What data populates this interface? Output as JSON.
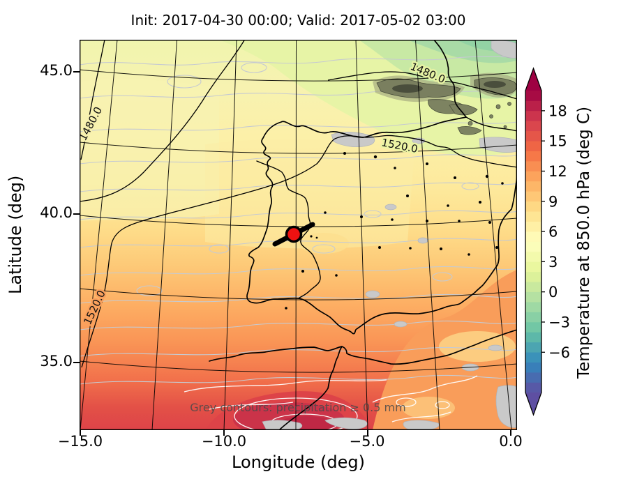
{
  "title": "Init: 2017-04-30 00:00; Valid: 2017-05-02 03:00",
  "init_time": "2017-04-30 00:00",
  "valid_time": "2017-05-02 03:00",
  "axes": {
    "xlabel": "Longitude (deg)",
    "ylabel": "Latitude (deg)",
    "x_ticks": [
      "−15.0",
      "−10.0",
      "−5.0",
      "0.0"
    ],
    "y_ticks": [
      "45.0",
      "40.0",
      "35.0"
    ]
  },
  "colorbar": {
    "label": "Temperature at 850.0 hPa (deg C)",
    "colormap": "Spectral_r",
    "vmin": -10,
    "vmax": 20,
    "step": 1,
    "extend": "both",
    "ticks": [
      {
        "label": "18",
        "v": 18
      },
      {
        "label": "15",
        "v": 15
      },
      {
        "label": "12",
        "v": 12
      },
      {
        "label": "9",
        "v": 9
      },
      {
        "label": "6",
        "v": 6
      },
      {
        "label": "3",
        "v": 3
      },
      {
        "label": "0",
        "v": 0
      },
      {
        "label": "−3",
        "v": -3
      },
      {
        "label": "−6",
        "v": -6
      }
    ],
    "anchors": [
      "#9e0142",
      "#d53e4f",
      "#f46d43",
      "#fdae61",
      "#fee08b",
      "#ffffbf",
      "#e6f598",
      "#abdda4",
      "#66c2a5",
      "#3288bd",
      "#5e4fa2"
    ]
  },
  "map": {
    "annotation": "Grey contours: precipitation ≥ 0.5 mm",
    "annotation_color": "#4a4a4a",
    "contour_labels": [
      {
        "text": "1480.0"
      },
      {
        "text": "1480.0"
      },
      {
        "text": "1520.0"
      },
      {
        "text": "1520.0"
      }
    ],
    "marker": {
      "color": "#ee1111",
      "outline": "#000000"
    },
    "precip_fill_grey": "#c9c9c9",
    "heavy_precip_olive": "#757a5c",
    "temp_contour_grey": "#c6cad1",
    "white_contour": "#ffffff",
    "coast_color": "#000000"
  }
}
